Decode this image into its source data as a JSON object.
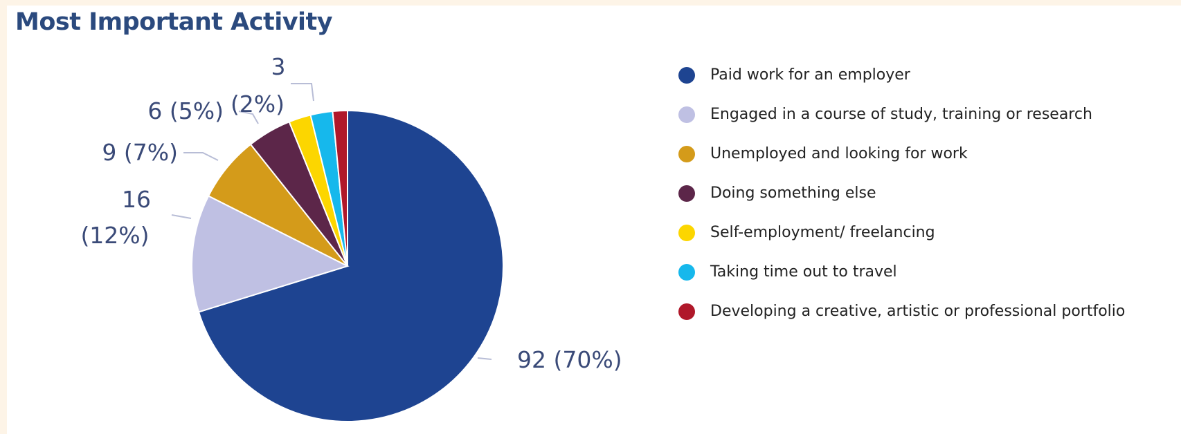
{
  "title": "Most Important Activity",
  "chart_data": {
    "type": "pie",
    "title": "Most Important Activity",
    "slices": [
      {
        "name": "Paid work for an employer",
        "value": 92,
        "label_lines": [
          "92 (70%)"
        ],
        "color": "#1e4491"
      },
      {
        "name": "Engaged in a course of study, training or research",
        "value": 16,
        "label_lines": [
          "16",
          "(12%)"
        ],
        "color": "#bfc0e3"
      },
      {
        "name": "Unemployed and looking for work",
        "value": 9,
        "label_lines": [
          "9 (7%)"
        ],
        "color": "#d49b1a"
      },
      {
        "name": "Doing something else",
        "value": 6,
        "label_lines": [
          "6 (5%)"
        ],
        "color": "#5c2649"
      },
      {
        "name": "Self-employment/ freelancing",
        "value": 3,
        "label_lines": [
          "3",
          "(2%)"
        ],
        "color": "#fcd600"
      },
      {
        "name": "Taking time out to travel",
        "value": 3,
        "label_lines": [],
        "color": "#16b8ec"
      },
      {
        "name": "Developing a creative, artistic or professional portfolio",
        "value": 2,
        "label_lines": [],
        "color": "#b0182a"
      }
    ],
    "legend_position": "right"
  }
}
